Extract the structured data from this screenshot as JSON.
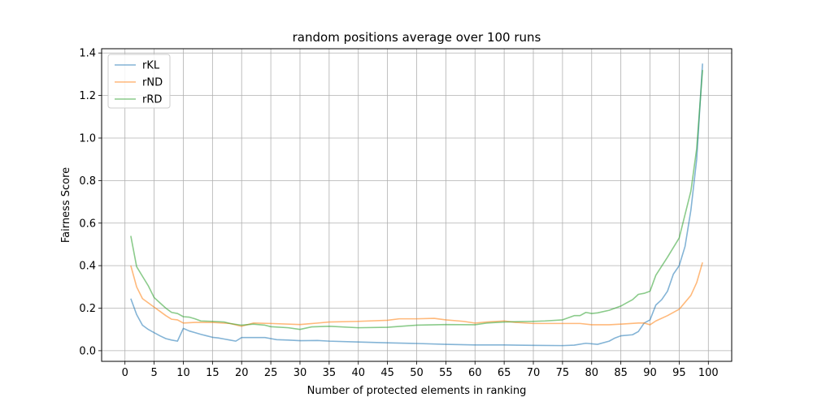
{
  "chart_data": {
    "type": "line",
    "title": "random positions average over 100 runs",
    "xlabel": "Number of protected elements in ranking",
    "ylabel": "Fairness Score",
    "xlim": [
      -4,
      104
    ],
    "ylim": [
      -0.05,
      1.42
    ],
    "xticks": [
      0,
      5,
      10,
      15,
      20,
      25,
      30,
      35,
      40,
      45,
      50,
      55,
      60,
      65,
      70,
      75,
      80,
      85,
      90,
      95,
      100
    ],
    "yticks": [
      0.0,
      0.2,
      0.4,
      0.6,
      0.8,
      1.0,
      1.2,
      1.4
    ],
    "grid": true,
    "legend_position": "upper-left",
    "series": [
      {
        "name": "rKL",
        "color": "#1f77b4",
        "points": [
          [
            1,
            0.245
          ],
          [
            2,
            0.17
          ],
          [
            3,
            0.12
          ],
          [
            4,
            0.1
          ],
          [
            5,
            0.085
          ],
          [
            6,
            0.07
          ],
          [
            7,
            0.057
          ],
          [
            8,
            0.05
          ],
          [
            9,
            0.045
          ],
          [
            10,
            0.105
          ],
          [
            11,
            0.093
          ],
          [
            12,
            0.085
          ],
          [
            13,
            0.077
          ],
          [
            14,
            0.07
          ],
          [
            15,
            0.063
          ],
          [
            16,
            0.06
          ],
          [
            17,
            0.055
          ],
          [
            18,
            0.05
          ],
          [
            19,
            0.045
          ],
          [
            20,
            0.062
          ],
          [
            22,
            0.062
          ],
          [
            24,
            0.062
          ],
          [
            25,
            0.057
          ],
          [
            26,
            0.052
          ],
          [
            28,
            0.05
          ],
          [
            30,
            0.047
          ],
          [
            33,
            0.048
          ],
          [
            35,
            0.045
          ],
          [
            40,
            0.041
          ],
          [
            45,
            0.037
          ],
          [
            50,
            0.034
          ],
          [
            55,
            0.03
          ],
          [
            60,
            0.027
          ],
          [
            65,
            0.027
          ],
          [
            70,
            0.025
          ],
          [
            75,
            0.024
          ],
          [
            77,
            0.026
          ],
          [
            79,
            0.035
          ],
          [
            81,
            0.03
          ],
          [
            83,
            0.045
          ],
          [
            84,
            0.06
          ],
          [
            85,
            0.07
          ],
          [
            87,
            0.075
          ],
          [
            88,
            0.09
          ],
          [
            89,
            0.13
          ],
          [
            90,
            0.145
          ],
          [
            91,
            0.215
          ],
          [
            92,
            0.24
          ],
          [
            93,
            0.28
          ],
          [
            94,
            0.36
          ],
          [
            95,
            0.4
          ],
          [
            96,
            0.49
          ],
          [
            97,
            0.66
          ],
          [
            98,
            0.9
          ],
          [
            99,
            1.35
          ]
        ]
      },
      {
        "name": "rND",
        "color": "#ff7f0e",
        "points": [
          [
            1,
            0.4
          ],
          [
            2,
            0.3
          ],
          [
            3,
            0.245
          ],
          [
            4,
            0.225
          ],
          [
            5,
            0.205
          ],
          [
            6,
            0.185
          ],
          [
            7,
            0.165
          ],
          [
            8,
            0.148
          ],
          [
            9,
            0.145
          ],
          [
            10,
            0.13
          ],
          [
            12,
            0.133
          ],
          [
            15,
            0.133
          ],
          [
            18,
            0.128
          ],
          [
            20,
            0.115
          ],
          [
            22,
            0.13
          ],
          [
            25,
            0.128
          ],
          [
            30,
            0.123
          ],
          [
            33,
            0.13
          ],
          [
            35,
            0.135
          ],
          [
            40,
            0.138
          ],
          [
            45,
            0.143
          ],
          [
            47,
            0.15
          ],
          [
            50,
            0.15
          ],
          [
            53,
            0.152
          ],
          [
            55,
            0.145
          ],
          [
            58,
            0.138
          ],
          [
            60,
            0.13
          ],
          [
            62,
            0.135
          ],
          [
            65,
            0.14
          ],
          [
            67,
            0.133
          ],
          [
            70,
            0.128
          ],
          [
            75,
            0.128
          ],
          [
            78,
            0.128
          ],
          [
            80,
            0.122
          ],
          [
            83,
            0.122
          ],
          [
            85,
            0.125
          ],
          [
            88,
            0.13
          ],
          [
            89,
            0.13
          ],
          [
            90,
            0.122
          ],
          [
            91,
            0.14
          ],
          [
            93,
            0.165
          ],
          [
            95,
            0.195
          ],
          [
            97,
            0.26
          ],
          [
            98,
            0.32
          ],
          [
            99,
            0.415
          ]
        ]
      },
      {
        "name": "rRD",
        "color": "#2ca02c",
        "points": [
          [
            1,
            0.54
          ],
          [
            2,
            0.395
          ],
          [
            3,
            0.35
          ],
          [
            4,
            0.305
          ],
          [
            5,
            0.25
          ],
          [
            6,
            0.225
          ],
          [
            7,
            0.2
          ],
          [
            8,
            0.18
          ],
          [
            9,
            0.175
          ],
          [
            10,
            0.16
          ],
          [
            11,
            0.158
          ],
          [
            12,
            0.15
          ],
          [
            13,
            0.14
          ],
          [
            15,
            0.138
          ],
          [
            17,
            0.135
          ],
          [
            18,
            0.128
          ],
          [
            20,
            0.12
          ],
          [
            22,
            0.125
          ],
          [
            24,
            0.12
          ],
          [
            25,
            0.113
          ],
          [
            28,
            0.108
          ],
          [
            30,
            0.1
          ],
          [
            32,
            0.112
          ],
          [
            35,
            0.115
          ],
          [
            40,
            0.108
          ],
          [
            45,
            0.11
          ],
          [
            50,
            0.12
          ],
          [
            55,
            0.123
          ],
          [
            60,
            0.122
          ],
          [
            62,
            0.13
          ],
          [
            65,
            0.135
          ],
          [
            70,
            0.138
          ],
          [
            72,
            0.14
          ],
          [
            75,
            0.145
          ],
          [
            77,
            0.165
          ],
          [
            78,
            0.165
          ],
          [
            79,
            0.18
          ],
          [
            80,
            0.175
          ],
          [
            81,
            0.178
          ],
          [
            83,
            0.19
          ],
          [
            85,
            0.21
          ],
          [
            86,
            0.225
          ],
          [
            87,
            0.24
          ],
          [
            88,
            0.265
          ],
          [
            89,
            0.27
          ],
          [
            90,
            0.28
          ],
          [
            91,
            0.355
          ],
          [
            93,
            0.44
          ],
          [
            95,
            0.53
          ],
          [
            97,
            0.75
          ],
          [
            98,
            0.95
          ],
          [
            99,
            1.32
          ]
        ]
      }
    ]
  }
}
